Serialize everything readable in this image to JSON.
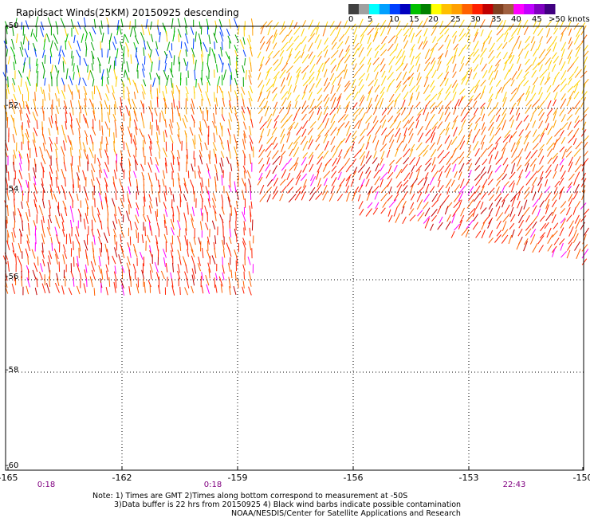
{
  "title": "Rapidsact Winds(25KM) 20150925 descending",
  "legend": {
    "colors": [
      "#404040",
      "#a0a0a0",
      "#00ffff",
      "#00a0ff",
      "#0040ff",
      "#0000c0",
      "#00c000",
      "#008000",
      "#ffff00",
      "#ffc000",
      "#ffa000",
      "#ff6000",
      "#ff2000",
      "#c00000",
      "#804020",
      "#a06040",
      "#ff00ff",
      "#c000ff",
      "#8000c0",
      "#400080"
    ],
    "ticks": [
      "0",
      "5",
      "10",
      "15",
      "20",
      "25",
      "30",
      "35",
      "40",
      "45",
      ">50 knots"
    ]
  },
  "axes": {
    "lon_labels": [
      "-165",
      "-162",
      "-159",
      "-156",
      "-153",
      "-150"
    ],
    "lat_labels": [
      "-50",
      "-52",
      "-54",
      "-56",
      "-58",
      "-60"
    ]
  },
  "times": [
    "0:18",
    "0:18",
    "22:43"
  ],
  "notes": [
    "Note: 1) Times are GMT 2)Times along bottom correspond to measurement at -50S",
    "3)Data buffer is 22 hrs from 20150925 4) Black wind barbs indicate possible contamination",
    "NOAA/NESDIS/Center for Satellite Applications and Research"
  ]
}
